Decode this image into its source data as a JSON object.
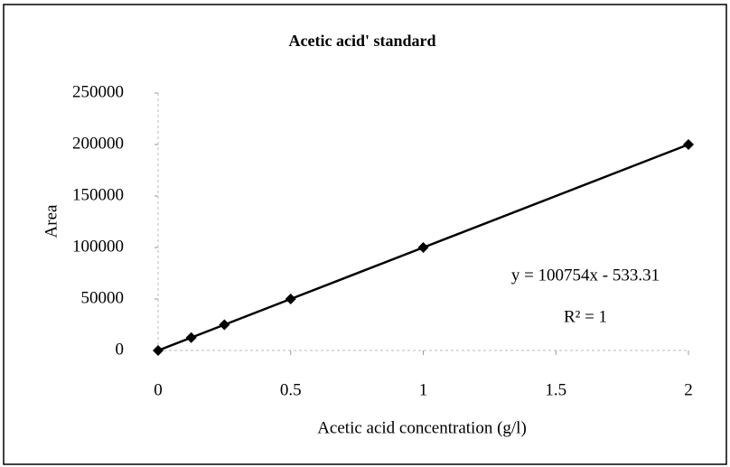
{
  "chart_data": {
    "type": "scatter",
    "title": "Acetic acid' standard",
    "x_label": "Acetic acid concentration (g/l)",
    "y_label": "Area",
    "x": [
      0,
      0.125,
      0.25,
      0.5,
      1,
      2
    ],
    "series": [
      {
        "color": "#000000",
        "values": [
          0,
          12500,
          25000,
          50000,
          100000,
          200000
        ]
      }
    ],
    "xlim": [
      0,
      2
    ],
    "xticks": [
      0,
      0.5,
      1,
      1.5,
      2
    ],
    "ylim": [
      0,
      250000
    ],
    "yticks": [
      0,
      50000,
      100000,
      150000,
      200000,
      250000
    ],
    "annotations": [
      "y = 100754x - 533.31",
      "R² = 1"
    ],
    "grid": false
  }
}
